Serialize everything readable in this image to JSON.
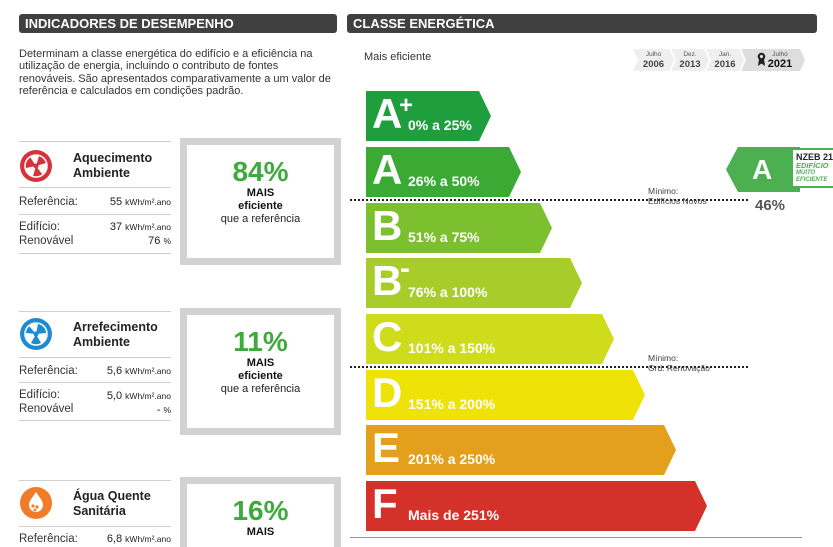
{
  "left_header": "INDICADORES DE DESEMPENHO",
  "right_header": "CLASSE ENERGÉTICA",
  "intro": "Determinam a classe energética do edifício e a eficiência na utilização de energia, incluindo o contributo de fontes renováveis. São apresentados comparativamente a um valor de referência e calculados em condições padrão.",
  "indicators": [
    {
      "title_1": "Aquecimento",
      "title_2": "Ambiente",
      "ref_label": "Referência:",
      "ref_value": "55",
      "ref_unit": "kWh/m².ano",
      "bld_label": "Edifício:",
      "bld_value": "37",
      "bld_unit": "kWh/m².ano",
      "ren_label": "Renovável",
      "ren_value": "76",
      "ren_unit": "%",
      "pct": "84%",
      "mais": "MAIS",
      "efi": "eficiente",
      "ref": "que a referência",
      "icon": "heating-fan-icon",
      "icon_color": "#d9313a"
    },
    {
      "title_1": "Arrefecimento",
      "title_2": "Ambiente",
      "ref_label": "Referência:",
      "ref_value": "5,6",
      "ref_unit": "kWh/m².ano",
      "bld_label": "Edifício:",
      "bld_value": "5,0",
      "bld_unit": "kWh/m².ano",
      "ren_label": "Renovável",
      "ren_value": "-",
      "ren_unit": "%",
      "pct": "11%",
      "mais": "MAIS",
      "efi": "eficiente",
      "ref": "que a referência",
      "icon": "cooling-fan-icon",
      "icon_color": "#1e8bd0"
    },
    {
      "title_1": "Água Quente",
      "title_2": "Sanitária",
      "ref_label": "Referência:",
      "ref_value": "6,8",
      "ref_unit": "kWh/m².ano",
      "pct": "16%",
      "mais": "MAIS",
      "icon": "hot-water-drops-icon",
      "icon_color": "#f07c2a"
    }
  ],
  "mais_eficiente": "Mais eficiente",
  "date_chips": [
    {
      "top": "Julho",
      "year": "2006"
    },
    {
      "top": "Dez.",
      "year": "2013"
    },
    {
      "top": "Jan.",
      "year": "2016"
    },
    {
      "top": "Julho",
      "year": "2021"
    }
  ],
  "classes": [
    {
      "letter": "A",
      "sup": "+",
      "range": "0% a 25%",
      "color": "#1e9e3c"
    },
    {
      "letter": "A",
      "sup": "",
      "range": "26% a 50%",
      "color": "#3aaa35"
    },
    {
      "letter": "B",
      "sup": "",
      "range": "51% a 75%",
      "color": "#7cbf2f"
    },
    {
      "letter": "B",
      "sup": "-",
      "range": "76% a 100%",
      "color": "#a8cd2a"
    },
    {
      "letter": "C",
      "sup": "",
      "range": "101% a 150%",
      "color": "#cfdc1c"
    },
    {
      "letter": "D",
      "sup": "",
      "range": "151% a 200%",
      "color": "#efe206"
    },
    {
      "letter": "E",
      "sup": "",
      "range": "201% a 250%",
      "color": "#e2a01c"
    },
    {
      "letter": "F",
      "sup": "",
      "range": "Mais de 251%",
      "color": "#d3312a"
    }
  ],
  "min_new": {
    "l1": "Mínimo:",
    "l2": "Edifícios Novos"
  },
  "min_renov": {
    "l1": "Mínimo:",
    "l2": "Grd. Renovação"
  },
  "current": {
    "letter": "A",
    "pct": "46%",
    "color": "#4caf50"
  },
  "nzeb": {
    "t1": "NZEB 21",
    "t2": "EDIFÍCIO",
    "t3": "MUITO",
    "t4": "EFICIENTE"
  }
}
